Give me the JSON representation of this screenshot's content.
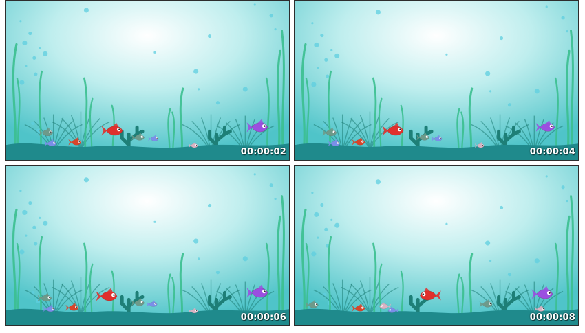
{
  "frames": [
    {
      "timestamp": "00:00:02"
    },
    {
      "timestamp": "00:00:04"
    },
    {
      "timestamp": "00:00:06"
    },
    {
      "timestamp": "00:00:08"
    }
  ],
  "colors": {
    "water_light": "#ffffff",
    "water_mid": "#bfeeee",
    "water_edge": "#4fc4c9",
    "seabed": "#1f8a8c",
    "seaweed": "#3bbf8f",
    "coral": "#1e7f77",
    "fish_red": "#e0302c",
    "fish_purple": "#9b4fe0",
    "fish_green": "#6e9a8a",
    "fish_blue": "#7a8fe8",
    "fish_orange": "#d8452a",
    "fish_pink": "#d9b3c3"
  }
}
